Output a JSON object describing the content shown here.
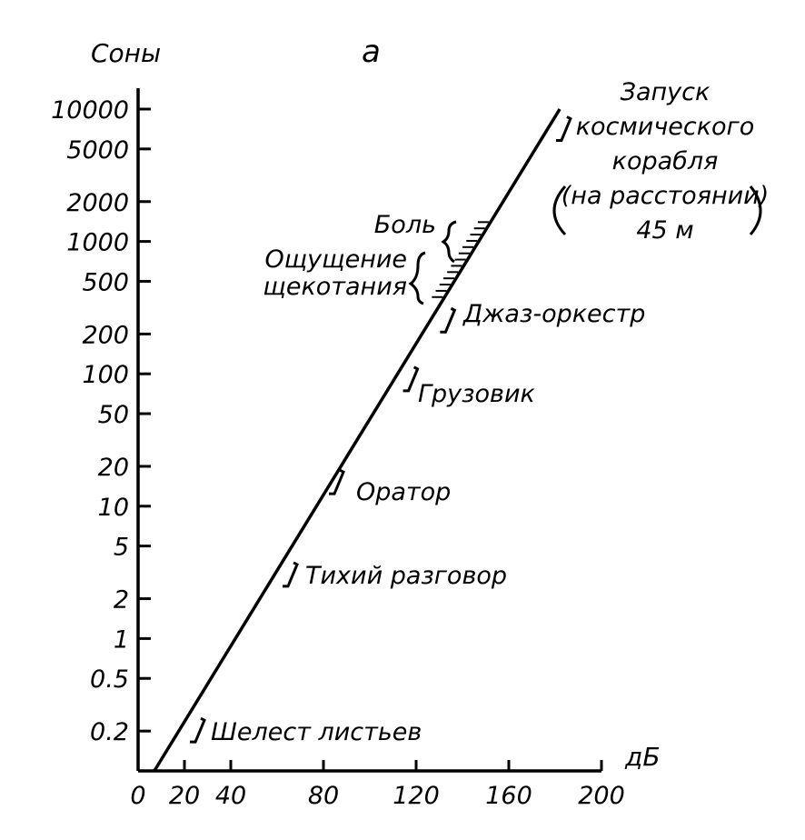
{
  "chart_data": {
    "type": "line",
    "panel_label": "а",
    "xlabel": "дБ",
    "ylabel": "Соны",
    "y_scale": "log",
    "grid": false,
    "legend": "none",
    "xlim": [
      0,
      200
    ],
    "ylim": [
      0.1,
      10000
    ],
    "x_ticks": [
      {
        "value": 0,
        "label": "0"
      },
      {
        "value": 20,
        "label": "20"
      },
      {
        "value": 40,
        "label": "40"
      },
      {
        "value": 80,
        "label": "80"
      },
      {
        "value": 120,
        "label": "120"
      },
      {
        "value": 160,
        "label": "160"
      },
      {
        "value": 200,
        "label": "200"
      }
    ],
    "y_ticks": [
      {
        "value": 0.2,
        "label": "0.2"
      },
      {
        "value": 0.5,
        "label": "0.5"
      },
      {
        "value": 1,
        "label": "1"
      },
      {
        "value": 2,
        "label": "2"
      },
      {
        "value": 5,
        "label": "5"
      },
      {
        "value": 10,
        "label": "10"
      },
      {
        "value": 20,
        "label": "20"
      },
      {
        "value": 50,
        "label": "50"
      },
      {
        "value": 100,
        "label": "100"
      },
      {
        "value": 200,
        "label": "200"
      },
      {
        "value": 500,
        "label": "500"
      },
      {
        "value": 1000,
        "label": "1000"
      },
      {
        "value": 2000,
        "label": "2000"
      },
      {
        "value": 5000,
        "label": "5000"
      },
      {
        "value": 10000,
        "label": "10000"
      }
    ],
    "line": {
      "x": [
        7,
        182
      ],
      "y": [
        0.1,
        10000
      ]
    },
    "annotations": [
      {
        "text": "Шелест листьев",
        "x": 20,
        "y": 0.2
      },
      {
        "text": "Тихий разговор",
        "x": 60,
        "y": 3
      },
      {
        "text": "Оратор",
        "x": 80,
        "y": 15
      },
      {
        "text": "Грузовик",
        "x": 112,
        "y": 90
      },
      {
        "text": "Джаз-оркестр",
        "x": 128,
        "y": 250
      },
      {
        "text": "Ощущение щекотания",
        "x": 126,
        "y": 400
      },
      {
        "text": "Боль",
        "x": 140,
        "y": 1200
      },
      {
        "text": "Запуск космического корабля (на расстоянии) 45 м",
        "x": 178,
        "y": 7000
      }
    ]
  }
}
